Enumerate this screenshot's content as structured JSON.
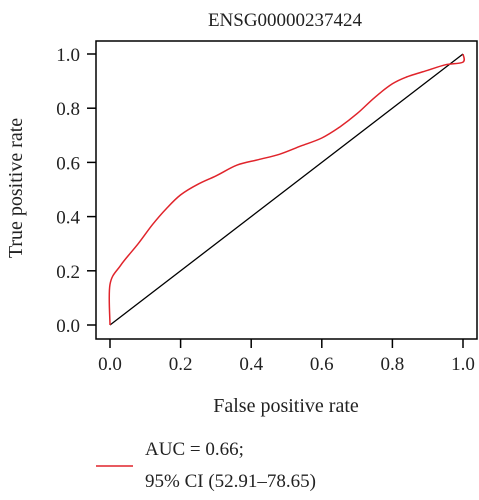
{
  "chart_data": {
    "type": "line",
    "title": "ENSG00000237424",
    "xlabel": "False positive rate",
    "ylabel": "True positive rate",
    "xlim": [
      0,
      1
    ],
    "ylim": [
      0,
      1
    ],
    "x_ticks": [
      "0.0",
      "0.2",
      "0.4",
      "0.6",
      "0.8",
      "1.0"
    ],
    "y_ticks": [
      "0.0",
      "0.2",
      "0.4",
      "0.6",
      "0.8",
      "1.0"
    ],
    "grid": false,
    "series": [
      {
        "color": "#e0242b",
        "x": [
          0.0,
          0.0,
          0.03,
          0.08,
          0.12,
          0.16,
          0.2,
          0.25,
          0.3,
          0.36,
          0.42,
          0.48,
          0.54,
          0.6,
          0.65,
          0.7,
          0.75,
          0.8,
          0.84,
          0.9,
          0.95,
          1.0,
          1.0
        ],
        "y": [
          0.0,
          0.15,
          0.22,
          0.3,
          0.37,
          0.43,
          0.48,
          0.52,
          0.55,
          0.59,
          0.61,
          0.63,
          0.66,
          0.69,
          0.73,
          0.78,
          0.84,
          0.89,
          0.915,
          0.94,
          0.96,
          0.97,
          1.0
        ]
      }
    ],
    "reference_line": {
      "color": "#000000",
      "x": [
        0,
        1
      ],
      "y": [
        0,
        1
      ]
    },
    "legend": {
      "placement": "bottom-left",
      "color": "#e0242b",
      "line1": "AUC = 0.66;",
      "line2": "95% CI (52.91–78.65)"
    }
  }
}
